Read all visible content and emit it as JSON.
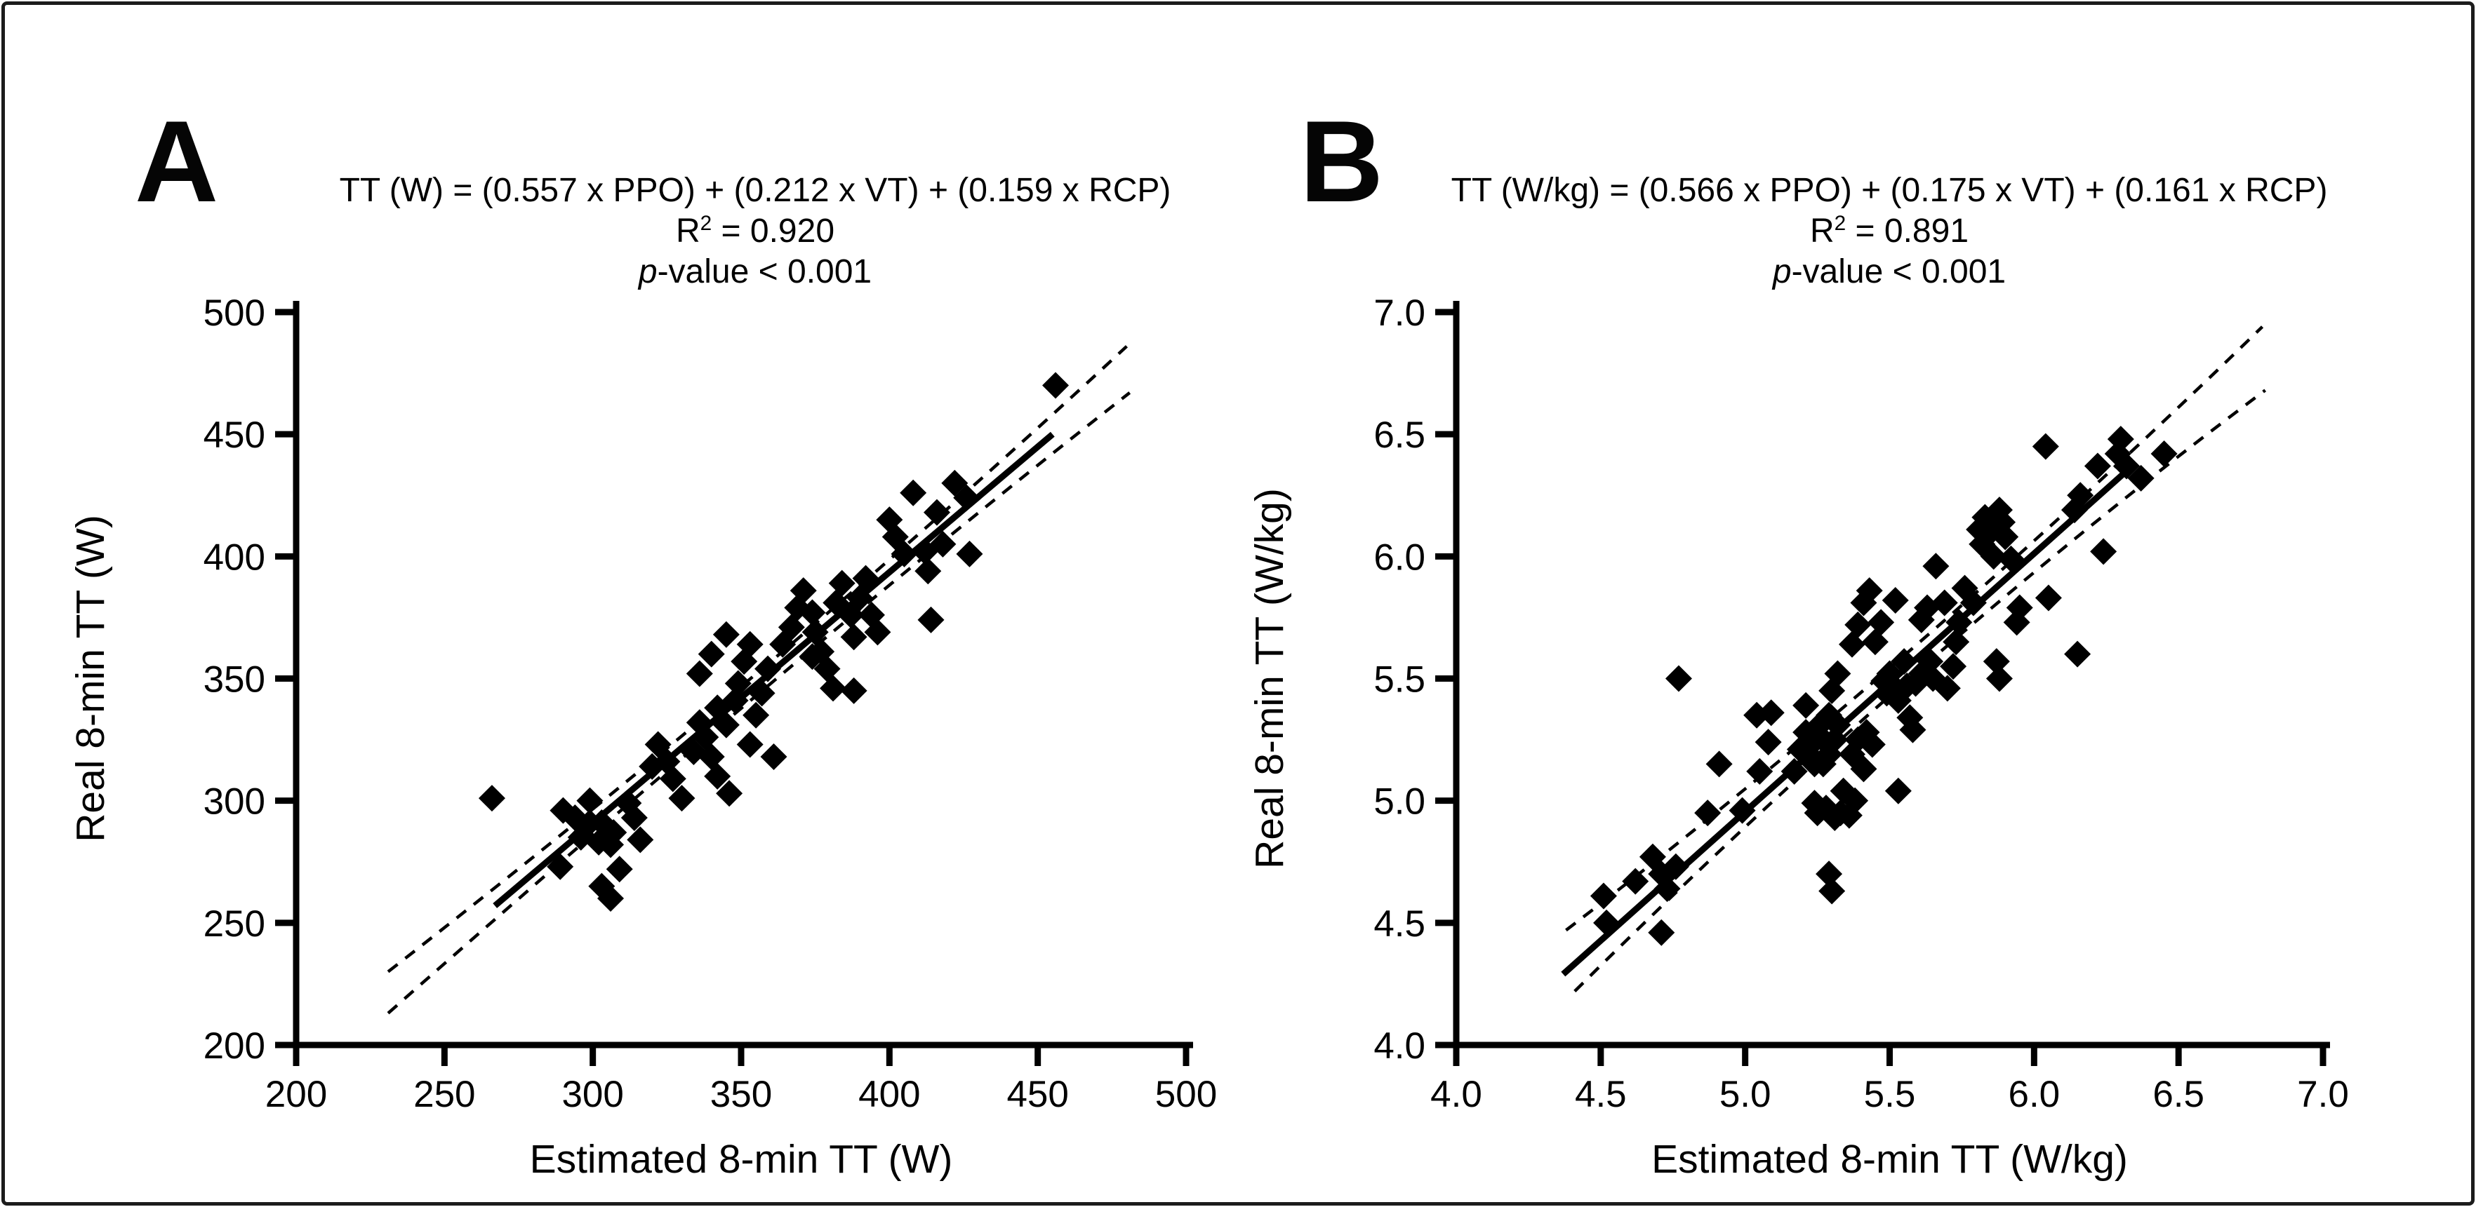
{
  "figure": {
    "background": "#ffffff",
    "border_color": "#1c1c1c",
    "ink_color": "#000000"
  },
  "chart_data": [
    {
      "type": "scatter",
      "panel_label": "A",
      "equation": "TT (W) = (0.557 x PPO) + (0.212 x VT) + (0.159 x RCP)",
      "r_label": "R",
      "r_sup": "2",
      "r_value": " = 0.920",
      "p_italic": "p",
      "p_rest": "-value < 0.001",
      "xlabel": "Estimated 8-min TT (W)",
      "ylabel": "Real 8-min TT (W)",
      "xlim": [
        200,
        500
      ],
      "ylim": [
        200,
        500
      ],
      "xticks": [
        200,
        250,
        300,
        350,
        400,
        450,
        500
      ],
      "yticks": [
        200,
        250,
        300,
        350,
        400,
        450,
        500
      ],
      "xtick_labels": [
        "200",
        "250",
        "300",
        "350",
        "400",
        "450",
        "500"
      ],
      "ytick_labels": [
        "200",
        "250",
        "300",
        "350",
        "400",
        "450",
        "500"
      ],
      "marker": "diamond",
      "grid": false,
      "legend": "none",
      "points": [
        [
          266,
          301
        ],
        [
          289,
          273
        ],
        [
          290,
          296
        ],
        [
          294,
          293
        ],
        [
          296,
          285
        ],
        [
          299,
          291
        ],
        [
          299,
          300
        ],
        [
          302,
          283
        ],
        [
          303,
          291
        ],
        [
          303,
          265
        ],
        [
          306,
          282
        ],
        [
          306,
          260
        ],
        [
          307,
          287
        ],
        [
          309,
          272
        ],
        [
          312,
          299
        ],
        [
          314,
          293
        ],
        [
          316,
          284
        ],
        [
          320,
          314
        ],
        [
          322,
          323
        ],
        [
          325,
          316
        ],
        [
          327,
          309
        ],
        [
          330,
          301
        ],
        [
          334,
          320
        ],
        [
          336,
          332
        ],
        [
          336,
          352
        ],
        [
          338,
          326
        ],
        [
          340,
          318
        ],
        [
          340,
          360
        ],
        [
          342,
          310
        ],
        [
          342,
          338
        ],
        [
          345,
          331
        ],
        [
          345,
          368
        ],
        [
          346,
          303
        ],
        [
          348,
          341
        ],
        [
          349,
          348
        ],
        [
          351,
          357
        ],
        [
          353,
          364
        ],
        [
          353,
          323
        ],
        [
          355,
          335
        ],
        [
          357,
          344
        ],
        [
          359,
          354
        ],
        [
          361,
          318
        ],
        [
          364,
          364
        ],
        [
          367,
          371
        ],
        [
          369,
          379
        ],
        [
          371,
          386
        ],
        [
          374,
          377
        ],
        [
          374,
          359
        ],
        [
          375,
          369
        ],
        [
          377,
          361
        ],
        [
          379,
          354
        ],
        [
          381,
          346
        ],
        [
          382,
          381
        ],
        [
          384,
          389
        ],
        [
          387,
          376
        ],
        [
          388,
          367
        ],
        [
          388,
          345
        ],
        [
          390,
          383
        ],
        [
          392,
          391
        ],
        [
          394,
          376
        ],
        [
          396,
          369
        ],
        [
          400,
          415
        ],
        [
          402,
          408
        ],
        [
          405,
          401
        ],
        [
          408,
          426
        ],
        [
          412,
          402
        ],
        [
          413,
          394
        ],
        [
          414,
          374
        ],
        [
          416,
          418
        ],
        [
          418,
          405
        ],
        [
          422,
          430
        ],
        [
          426,
          424
        ],
        [
          427,
          401
        ],
        [
          456,
          470
        ]
      ],
      "regression_line": {
        "x1": 267,
        "y1": 257,
        "x2": 455,
        "y2": 450
      },
      "ci_upper": {
        "x1": 231,
        "y1": 230,
        "cx": 366.5,
        "cy": 358,
        "x2": 480,
        "y2": 486
      },
      "ci_lower": {
        "x1": 231,
        "y1": 213,
        "cx": 366,
        "cy": 358,
        "x2": 481,
        "y2": 467
      }
    },
    {
      "type": "scatter",
      "panel_label": "B",
      "equation": "TT (W/kg) = (0.566 x PPO) + (0.175 x VT) + (0.161 x RCP)",
      "r_label": "R",
      "r_sup": "2",
      "r_value": " = 0.891",
      "p_italic": "p",
      "p_rest": "-value < 0.001",
      "xlabel": "Estimated 8-min TT (W/kg)",
      "ylabel": "Real 8-min TT (W/kg)",
      "xlim": [
        4.0,
        7.0
      ],
      "ylim": [
        4.0,
        7.0
      ],
      "xticks": [
        4.0,
        4.5,
        5.0,
        5.5,
        6.0,
        6.5,
        7.0
      ],
      "yticks": [
        4.0,
        4.5,
        5.0,
        5.5,
        6.0,
        6.5,
        7.0
      ],
      "xtick_labels": [
        "4.0",
        "4.5",
        "5.0",
        "5.5",
        "6.0",
        "6.5",
        "7.0"
      ],
      "ytick_labels": [
        "4.0",
        "4.5",
        "5.0",
        "5.5",
        "6.0",
        "6.5",
        "7.0"
      ],
      "marker": "diamond",
      "grid": false,
      "legend": "none",
      "points": [
        [
          4.51,
          4.61
        ],
        [
          4.52,
          4.5
        ],
        [
          4.62,
          4.67
        ],
        [
          4.68,
          4.77
        ],
        [
          4.71,
          4.7
        ],
        [
          4.71,
          4.46
        ],
        [
          4.73,
          4.64
        ],
        [
          4.76,
          4.73
        ],
        [
          4.77,
          5.5
        ],
        [
          4.87,
          4.95
        ],
        [
          4.91,
          5.15
        ],
        [
          4.99,
          4.96
        ],
        [
          5.04,
          5.35
        ],
        [
          5.05,
          5.12
        ],
        [
          5.08,
          5.24
        ],
        [
          5.09,
          5.36
        ],
        [
          5.17,
          5.12
        ],
        [
          5.19,
          5.21
        ],
        [
          5.21,
          5.28
        ],
        [
          5.21,
          5.39
        ],
        [
          5.22,
          5.19
        ],
        [
          5.24,
          5.25
        ],
        [
          5.24,
          5.15
        ],
        [
          5.24,
          4.99
        ],
        [
          5.25,
          5.3
        ],
        [
          5.25,
          4.95
        ],
        [
          5.27,
          5.25
        ],
        [
          5.27,
          5.15
        ],
        [
          5.28,
          4.97
        ],
        [
          5.29,
          5.35
        ],
        [
          5.29,
          5.19
        ],
        [
          5.29,
          4.7
        ],
        [
          5.3,
          5.45
        ],
        [
          5.3,
          4.63
        ],
        [
          5.31,
          5.25
        ],
        [
          5.31,
          4.93
        ],
        [
          5.32,
          5.31
        ],
        [
          5.32,
          5.52
        ],
        [
          5.33,
          4.95
        ],
        [
          5.34,
          5.04
        ],
        [
          5.36,
          4.94
        ],
        [
          5.37,
          5.19
        ],
        [
          5.37,
          5.64
        ],
        [
          5.38,
          5.0
        ],
        [
          5.39,
          5.25
        ],
        [
          5.39,
          5.72
        ],
        [
          5.41,
          5.13
        ],
        [
          5.41,
          5.81
        ],
        [
          5.42,
          5.28
        ],
        [
          5.43,
          5.86
        ],
        [
          5.44,
          5.23
        ],
        [
          5.45,
          5.65
        ],
        [
          5.47,
          5.73
        ],
        [
          5.48,
          5.49
        ],
        [
          5.49,
          5.44
        ],
        [
          5.5,
          5.52
        ],
        [
          5.52,
          5.46
        ],
        [
          5.52,
          5.82
        ],
        [
          5.53,
          5.41
        ],
        [
          5.53,
          5.04
        ],
        [
          5.55,
          5.57
        ],
        [
          5.56,
          5.47
        ],
        [
          5.57,
          5.34
        ],
        [
          5.58,
          5.29
        ],
        [
          5.59,
          5.48
        ],
        [
          5.61,
          5.52
        ],
        [
          5.61,
          5.74
        ],
        [
          5.63,
          5.79
        ],
        [
          5.64,
          5.57
        ],
        [
          5.65,
          5.5
        ],
        [
          5.66,
          5.96
        ],
        [
          5.69,
          5.81
        ],
        [
          5.7,
          5.46
        ],
        [
          5.72,
          5.55
        ],
        [
          5.73,
          5.65
        ],
        [
          5.74,
          5.73
        ],
        [
          5.76,
          5.87
        ],
        [
          5.79,
          5.81
        ],
        [
          5.81,
          6.11
        ],
        [
          5.82,
          6.05
        ],
        [
          5.83,
          6.16
        ],
        [
          5.85,
          6.1
        ],
        [
          5.86,
          6.0
        ],
        [
          5.87,
          5.57
        ],
        [
          5.88,
          5.5
        ],
        [
          5.88,
          6.19
        ],
        [
          5.89,
          6.14
        ],
        [
          5.9,
          6.08
        ],
        [
          5.92,
          5.99
        ],
        [
          5.94,
          5.73
        ],
        [
          5.95,
          5.79
        ],
        [
          6.04,
          6.45
        ],
        [
          6.05,
          5.83
        ],
        [
          6.14,
          6.19
        ],
        [
          6.15,
          5.6
        ],
        [
          6.16,
          6.25
        ],
        [
          6.22,
          6.37
        ],
        [
          6.24,
          6.02
        ],
        [
          6.29,
          6.42
        ],
        [
          6.3,
          6.48
        ],
        [
          6.32,
          6.37
        ],
        [
          6.37,
          6.32
        ],
        [
          6.45,
          6.42
        ]
      ],
      "regression_line": {
        "x1": 4.37,
        "y1": 4.29,
        "x2": 6.33,
        "y2": 6.36
      },
      "ci_upper": {
        "x1": 4.38,
        "y1": 4.47,
        "cx": 5.6,
        "cy": 5.57,
        "x2": 6.79,
        "y2": 6.94
      },
      "ci_lower": {
        "x1": 4.41,
        "y1": 4.22,
        "cx": 5.61,
        "cy": 5.63,
        "x2": 6.8,
        "y2": 6.68
      }
    }
  ]
}
